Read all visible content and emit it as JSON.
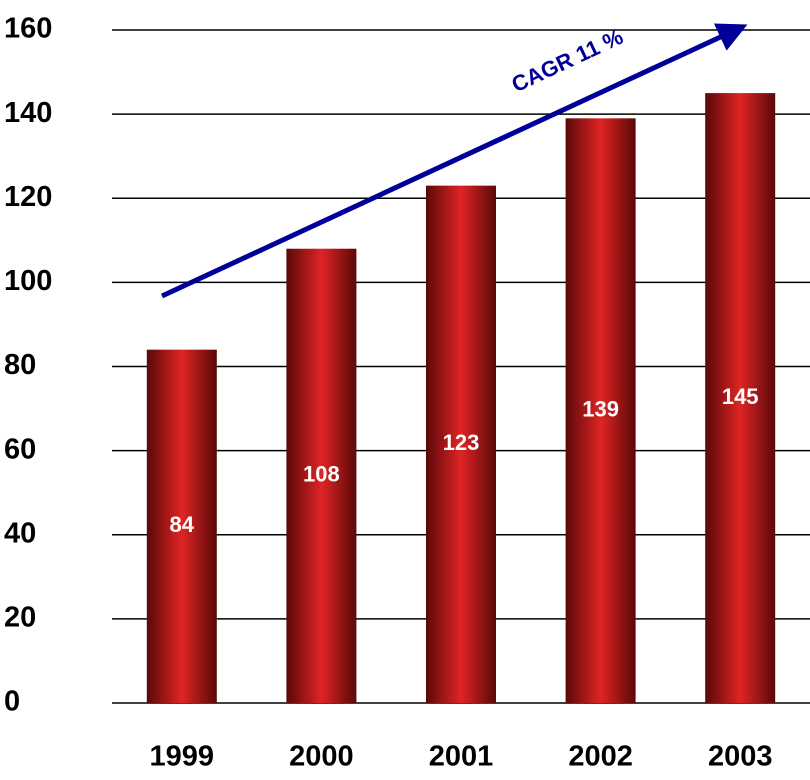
{
  "chart_data": {
    "type": "bar",
    "categories": [
      "1999",
      "2000",
      "2001",
      "2002",
      "2003"
    ],
    "values": [
      84,
      108,
      123,
      139,
      145
    ],
    "color": "#d42020",
    "ylim": [
      0,
      160
    ],
    "yticks": [
      0,
      20,
      40,
      60,
      80,
      100,
      120,
      140,
      160
    ],
    "grid": true,
    "annotation": "CAGR 11 %",
    "annotation_color": "#000099"
  }
}
